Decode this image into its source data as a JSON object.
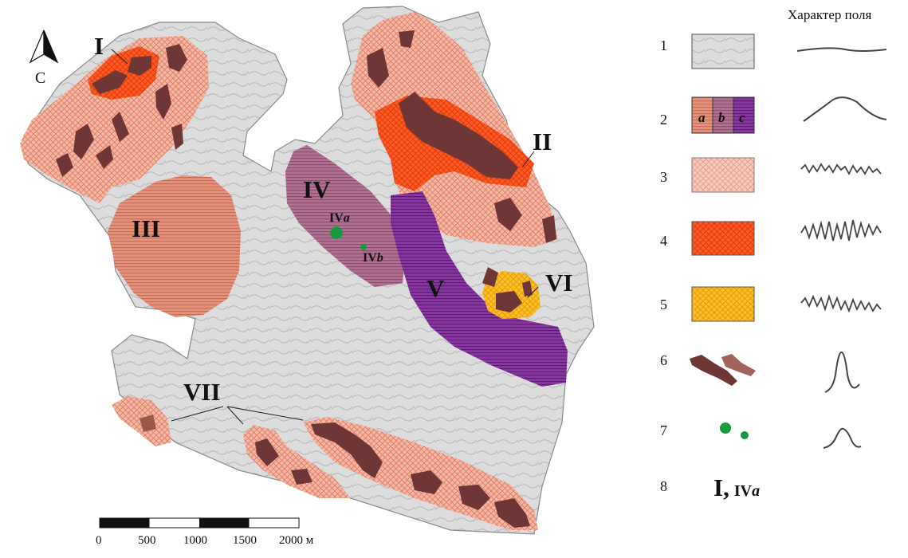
{
  "legend": {
    "header": "Характер поля",
    "items": [
      {
        "num": "1",
        "pattern": "grey-wavy",
        "color": "#d9d9d9"
      },
      {
        "num": "2",
        "pattern": "striped",
        "sub": [
          "a",
          "b",
          "c"
        ],
        "colors": [
          "#d9876f",
          "#a45f85",
          "#7d2a8c"
        ]
      },
      {
        "num": "3",
        "pattern": "light-crosshatch",
        "color": "#f7c2b0"
      },
      {
        "num": "4",
        "pattern": "red-crosshatch",
        "color": "#fb4d16"
      },
      {
        "num": "5",
        "pattern": "orange-crosshatch",
        "color": "#fbb414"
      },
      {
        "num": "6",
        "pattern": "dark-bodies",
        "color": "#6e3634"
      },
      {
        "num": "7",
        "pattern": "green-dots",
        "color": "#1a9a40"
      },
      {
        "num": "8",
        "label_main": "I,",
        "label_sub": "IV",
        "label_sub_italic": "a"
      }
    ]
  },
  "north": {
    "label": "С"
  },
  "scale": {
    "ticks": [
      "0",
      "500",
      "1000",
      "1500",
      "2000 м"
    ]
  },
  "zones": {
    "I": "I",
    "II": "II",
    "III": "III",
    "IV": "IV",
    "IVa_main": "IV",
    "IVa_italic": "a",
    "IVb_main": "IV",
    "IVb_italic": "b",
    "V": "V",
    "VI": "VI",
    "VII": "VII"
  }
}
